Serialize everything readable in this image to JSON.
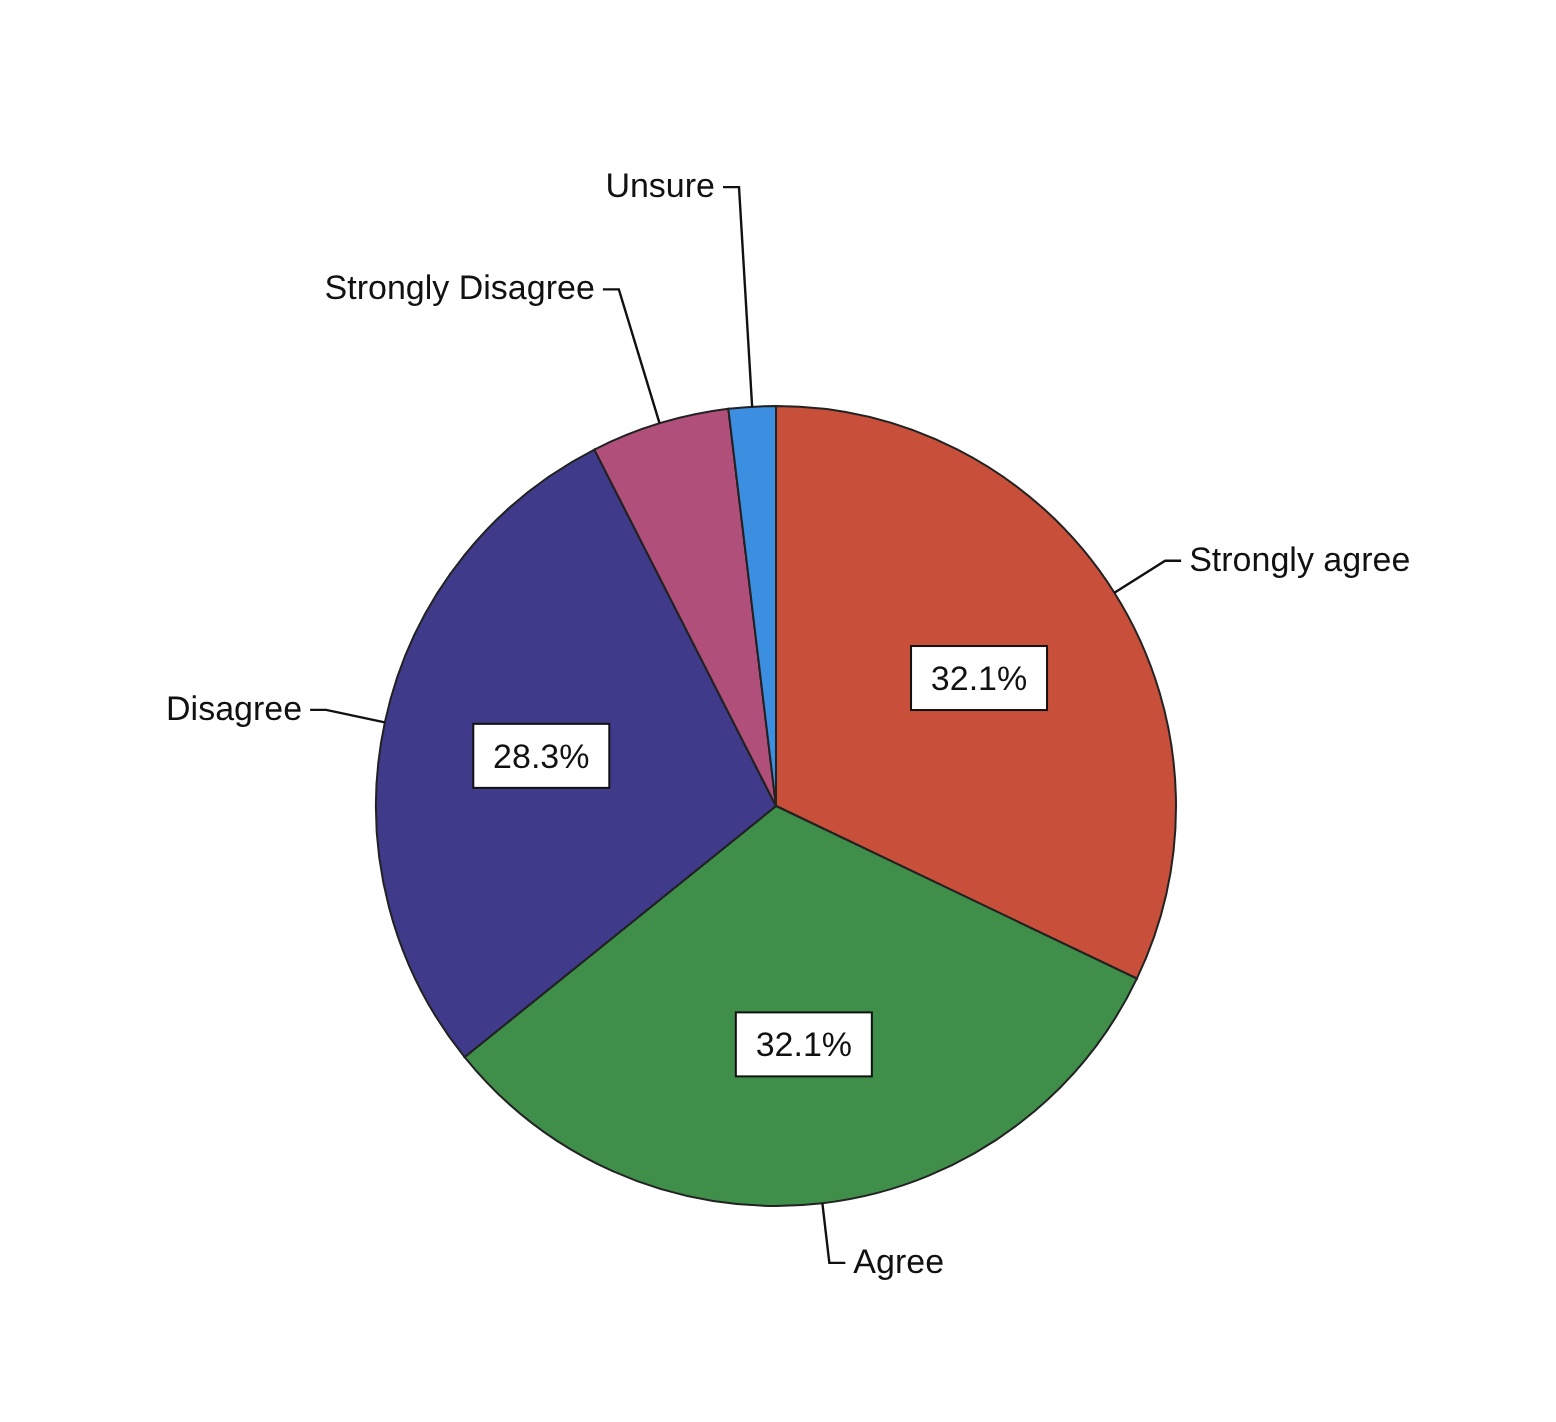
{
  "chart_data": {
    "type": "pie",
    "categories": [
      "Strongly agree",
      "Agree",
      "Disagree",
      "Strongly Disagree",
      "Unsure"
    ],
    "values": [
      32.1,
      32.1,
      28.3,
      5.6,
      1.9
    ],
    "colors": [
      "#c8503a",
      "#3f8f4a",
      "#3f3a8a",
      "#b0507a",
      "#3c8ee0"
    ],
    "value_labels": [
      "32.1%",
      "32.1%",
      "28.3%",
      null,
      null
    ],
    "legend": false
  }
}
